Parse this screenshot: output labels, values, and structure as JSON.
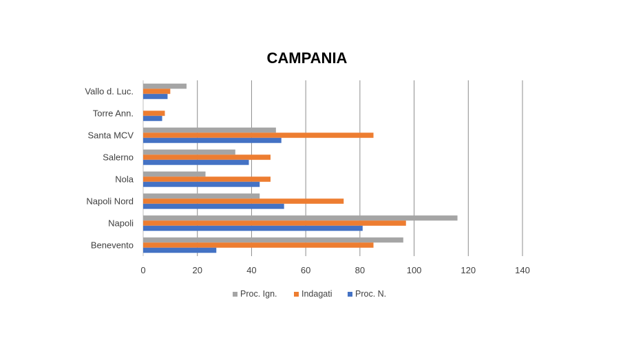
{
  "chart_data": {
    "type": "bar",
    "orientation": "horizontal",
    "title": "CAMPANIA",
    "categories": [
      "Vallo d. Luc.",
      "Torre Ann.",
      "Santa MCV",
      "Salerno",
      "Nola",
      "Napoli Nord",
      "Napoli",
      "Benevento"
    ],
    "series": [
      {
        "name": "Proc. Ign.",
        "color": "#a5a5a5",
        "values": [
          16,
          0,
          49,
          34,
          23,
          43,
          116,
          96
        ]
      },
      {
        "name": "Indagati",
        "color": "#ed7d31",
        "values": [
          10,
          8,
          85,
          47,
          47,
          74,
          97,
          85
        ]
      },
      {
        "name": "Proc. N.",
        "color": "#4472c4",
        "values": [
          9,
          7,
          51,
          39,
          43,
          52,
          81,
          27
        ]
      }
    ],
    "xlim": [
      0,
      140
    ],
    "xticks": [
      0,
      20,
      40,
      60,
      80,
      100,
      120,
      140
    ],
    "grid": true,
    "legend_position": "bottom"
  }
}
